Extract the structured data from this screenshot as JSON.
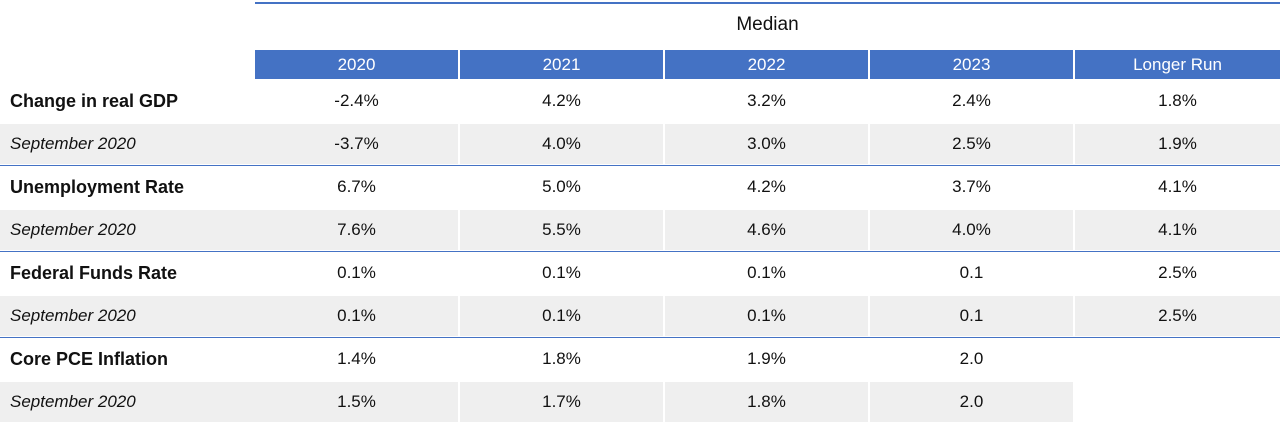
{
  "title": "Median",
  "columns": [
    "2020",
    "2021",
    "2022",
    "2023",
    "Longer Run"
  ],
  "rows": [
    {
      "label": "Change in real GDP",
      "type": "main",
      "values": [
        "-2.4%",
        "4.2%",
        "3.2%",
        "2.4%",
        "1.8%"
      ]
    },
    {
      "label": "September  2020",
      "type": "sub",
      "values": [
        "-3.7%",
        "4.0%",
        "3.0%",
        "2.5%",
        "1.9%"
      ]
    },
    {
      "label": "Unemployment Rate",
      "type": "main",
      "values": [
        "6.7%",
        "5.0%",
        "4.2%",
        "3.7%",
        "4.1%"
      ]
    },
    {
      "label": "September  2020",
      "type": "sub",
      "values": [
        "7.6%",
        "5.5%",
        "4.6%",
        "4.0%",
        "4.1%"
      ]
    },
    {
      "label": "Federal Funds Rate",
      "type": "main",
      "values": [
        "0.1%",
        "0.1%",
        "0.1%",
        "0.1",
        "2.5%"
      ]
    },
    {
      "label": "September  2020",
      "type": "sub",
      "values": [
        "0.1%",
        "0.1%",
        "0.1%",
        "0.1",
        "2.5%"
      ]
    },
    {
      "label": "Core PCE Inflation",
      "type": "main",
      "values": [
        "1.4%",
        "1.8%",
        "1.9%",
        "2.0",
        ""
      ]
    },
    {
      "label": "September  2020",
      "type": "sub",
      "values": [
        "1.5%",
        "1.7%",
        "1.8%",
        "2.0",
        ""
      ]
    }
  ],
  "colors": {
    "header": "#4472C4",
    "shade": "#efefef"
  }
}
